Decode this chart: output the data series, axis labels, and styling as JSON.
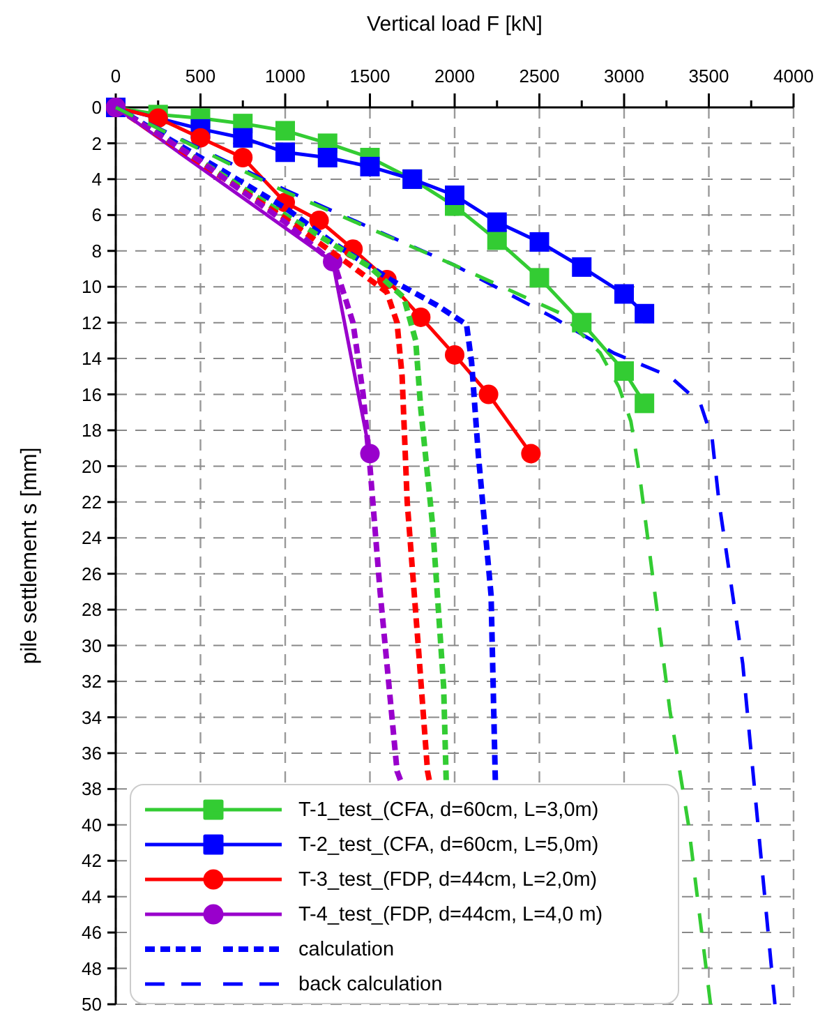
{
  "chart_data": {
    "type": "line",
    "xlabel": "Vertical load F [kN]",
    "ylabel": "pile settlement s [mm]",
    "xlim": [
      0,
      4000
    ],
    "xticks": [
      0,
      {
        "value": 250,
        "label": null
      },
      500,
      {
        "value": 750,
        "label": null
      },
      1000,
      {
        "value": 1250,
        "label": null
      },
      1500,
      {
        "value": 1750,
        "label": null
      },
      2000,
      {
        "value": 2250,
        "label": null
      },
      2500,
      {
        "value": 2750,
        "label": null
      },
      3000,
      {
        "value": 3250,
        "label": null
      },
      3500,
      {
        "value": 3750,
        "label": null
      },
      4000
    ],
    "ylim": [
      50,
      0
    ],
    "yticks": [
      0,
      2,
      4,
      6,
      8,
      10,
      12,
      14,
      16,
      18,
      20,
      22,
      24,
      26,
      28,
      30,
      32,
      34,
      36,
      38,
      40,
      42,
      44,
      46,
      48,
      50
    ],
    "grid": true,
    "legend": "bottom left",
    "series": [
      {
        "name": "T-1_test_(CFA, d=60cm, L=3,0m)",
        "color": "#33cc33",
        "marker": "square",
        "line_style": "solid",
        "x": [
          0,
          250,
          500,
          750,
          1000,
          1250,
          1500,
          1750,
          2000,
          2250,
          2500,
          2750,
          3000,
          3120
        ],
        "values": [
          0,
          0.4,
          0.6,
          0.9,
          1.3,
          2.0,
          2.8,
          4.0,
          5.5,
          7.4,
          9.5,
          12.0,
          14.7,
          16.5
        ]
      },
      {
        "name": "T-2_test_(CFA, d=60cm, L=5,0m)",
        "color": "#0000ff",
        "marker": "square",
        "line_style": "solid",
        "x": [
          0,
          500,
          750,
          1000,
          1250,
          1500,
          1750,
          2000,
          2250,
          2500,
          2750,
          3000,
          3120
        ],
        "values": [
          0,
          1.2,
          1.7,
          2.5,
          2.8,
          3.3,
          4.0,
          4.9,
          6.4,
          7.5,
          8.9,
          10.4,
          11.5
        ]
      },
      {
        "name": "T-3_test_(FDP, d=44cm, L=2,0m)",
        "color": "#ff0000",
        "marker": "circle",
        "line_style": "solid",
        "x": [
          0,
          250,
          500,
          750,
          1000,
          1200,
          1400,
          1600,
          1800,
          2000,
          2200,
          2450
        ],
        "values": [
          0,
          0.6,
          1.7,
          2.8,
          5.3,
          6.3,
          7.9,
          9.6,
          11.7,
          13.8,
          16.0,
          19.3
        ]
      },
      {
        "name": "T-4_test_(FDP, d=44cm, L=4,0 m)",
        "color": "#9900cc",
        "marker": "circle",
        "line_style": "solid",
        "x": [
          0,
          1280,
          1500
        ],
        "values": [
          0,
          8.6,
          19.3
        ]
      },
      {
        "name": "calculation",
        "color": "#0000ff",
        "marker": "none",
        "line_style": "dotted",
        "x": [
          0,
          500,
          1000,
          1290,
          1620,
          1890,
          2070,
          2100,
          2140,
          2215,
          2240
        ],
        "values": [
          0,
          2.8,
          5.6,
          7.6,
          9.6,
          11.0,
          12.1,
          14.2,
          19.4,
          27.2,
          37.5
        ]
      },
      {
        "color": "#33cc33",
        "marker": "none",
        "line_style": "dotted",
        "x": [
          0,
          1000,
          1500,
          1700,
          1770,
          1800,
          1870,
          1935,
          1950
        ],
        "values": [
          0,
          6.0,
          8.9,
          10.6,
          13,
          16.8,
          23.3,
          32.3,
          37.5
        ]
      },
      {
        "color": "#ff0000",
        "marker": "none",
        "line_style": "dotted",
        "x": [
          0,
          1000,
          1400,
          1600,
          1660,
          1690,
          1720,
          1785,
          1840,
          1850
        ],
        "values": [
          0,
          6.2,
          8.9,
          10.3,
          12,
          15,
          22,
          30,
          37,
          37.5
        ]
      },
      {
        "color": "#9900cc",
        "marker": "none",
        "line_style": "dotted",
        "x": [
          0,
          500,
          1000,
          1290,
          1400,
          1460,
          1500,
          1560,
          1660,
          1680
        ],
        "values": [
          0,
          3.0,
          6.4,
          8.7,
          12,
          16,
          20,
          27,
          37,
          37.5
        ]
      },
      {
        "name": "back calculation",
        "color": "#0000ff",
        "marker": "none",
        "line_style": "dashed",
        "x": [
          0,
          1000,
          2000,
          2580,
          2940,
          3270,
          3450,
          3520,
          3560,
          3700,
          3760,
          3830,
          3890
        ],
        "values": [
          0,
          4.6,
          8.8,
          11.7,
          13.7,
          15.0,
          16.5,
          18.5,
          22,
          31,
          37,
          44,
          50
        ]
      },
      {
        "color": "#33cc33",
        "marker": "none",
        "line_style": "dashed",
        "x": [
          0,
          1000,
          2000,
          2630,
          2860,
          2970,
          3040,
          3090,
          3190,
          3270,
          3380,
          3510
        ],
        "values": [
          0,
          4.7,
          8.8,
          11.5,
          13.7,
          15.6,
          17.5,
          20.4,
          27.7,
          33.6,
          40,
          50
        ]
      }
    ]
  }
}
